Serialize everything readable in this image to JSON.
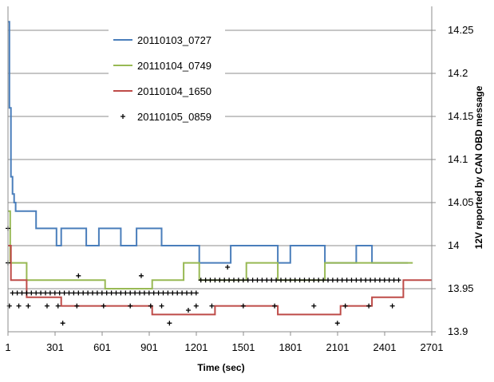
{
  "chart_data": {
    "type": "line",
    "title": "",
    "xlabel": "Time (sec)",
    "ylabel": "12V reported by CAN OBD message",
    "xlim": [
      1,
      2701
    ],
    "ylim": [
      13.9,
      14.27
    ],
    "x_ticks": [
      "1",
      "301",
      "601",
      "901",
      "1201",
      "1501",
      "1801",
      "2101",
      "2401",
      "2701"
    ],
    "y_ticks": [
      "14.25",
      "14.2",
      "14.15",
      "14.1",
      "14.05",
      "14",
      "13.95",
      "13.9"
    ],
    "y_axis_side": "right",
    "grid": "horizontal",
    "legend_position": "top-left inside",
    "series": [
      {
        "name": "20110103_0727",
        "style": "line",
        "color": "#4a7ebb",
        "points": [
          [
            1,
            14.26
          ],
          [
            10,
            14.16
          ],
          [
            20,
            14.08
          ],
          [
            30,
            14.06
          ],
          [
            40,
            14.05
          ],
          [
            50,
            14.04
          ],
          [
            150,
            14.04
          ],
          [
            180,
            14.02
          ],
          [
            300,
            14.02
          ],
          [
            310,
            14.0
          ],
          [
            330,
            14.0
          ],
          [
            340,
            14.02
          ],
          [
            480,
            14.02
          ],
          [
            500,
            14.0
          ],
          [
            560,
            14.0
          ],
          [
            580,
            14.02
          ],
          [
            700,
            14.02
          ],
          [
            720,
            14.0
          ],
          [
            800,
            14.0
          ],
          [
            820,
            14.02
          ],
          [
            960,
            14.02
          ],
          [
            980,
            14.0
          ],
          [
            1200,
            14.0
          ],
          [
            1220,
            13.98
          ],
          [
            1400,
            13.98
          ],
          [
            1420,
            14.0
          ],
          [
            1700,
            14.0
          ],
          [
            1720,
            13.98
          ],
          [
            1780,
            13.98
          ],
          [
            1800,
            14.0
          ],
          [
            2000,
            14.0
          ],
          [
            2020,
            13.98
          ],
          [
            2200,
            13.98
          ],
          [
            2220,
            14.0
          ],
          [
            2300,
            14.0
          ],
          [
            2320,
            13.98
          ],
          [
            2550,
            13.98
          ]
        ]
      },
      {
        "name": "20110104_0749",
        "style": "line",
        "color": "#98b954",
        "points": [
          [
            1,
            14.04
          ],
          [
            15,
            13.98
          ],
          [
            100,
            13.98
          ],
          [
            120,
            13.96
          ],
          [
            600,
            13.96
          ],
          [
            620,
            13.95
          ],
          [
            900,
            13.95
          ],
          [
            920,
            13.96
          ],
          [
            1100,
            13.96
          ],
          [
            1120,
            13.98
          ],
          [
            1200,
            13.98
          ],
          [
            1220,
            13.96
          ],
          [
            1500,
            13.96
          ],
          [
            1520,
            13.98
          ],
          [
            1700,
            13.98
          ],
          [
            1720,
            13.96
          ],
          [
            2000,
            13.96
          ],
          [
            2020,
            13.98
          ],
          [
            2580,
            13.98
          ]
        ]
      },
      {
        "name": "20110104_1650",
        "style": "line",
        "color": "#be4b48",
        "points": [
          [
            1,
            14.0
          ],
          [
            20,
            13.96
          ],
          [
            100,
            13.96
          ],
          [
            120,
            13.94
          ],
          [
            330,
            13.94
          ],
          [
            340,
            13.93
          ],
          [
            900,
            13.93
          ],
          [
            920,
            13.92
          ],
          [
            1300,
            13.92
          ],
          [
            1320,
            13.93
          ],
          [
            1700,
            13.93
          ],
          [
            1720,
            13.92
          ],
          [
            2100,
            13.92
          ],
          [
            2120,
            13.93
          ],
          [
            2300,
            13.93
          ],
          [
            2320,
            13.94
          ],
          [
            2500,
            13.94
          ],
          [
            2520,
            13.96
          ],
          [
            2700,
            13.96
          ]
        ]
      },
      {
        "name": "20110105_0859",
        "style": "markers",
        "marker": "+",
        "color": "#000000",
        "points": [
          [
            1,
            14.02
          ],
          [
            1,
            13.98
          ],
          [
            10,
            13.93
          ],
          [
            30,
            13.945
          ],
          [
            60,
            13.945
          ],
          [
            90,
            13.945
          ],
          [
            120,
            13.945
          ],
          [
            150,
            13.945
          ],
          [
            180,
            13.945
          ],
          [
            210,
            13.945
          ],
          [
            240,
            13.945
          ],
          [
            270,
            13.945
          ],
          [
            300,
            13.945
          ],
          [
            330,
            13.945
          ],
          [
            360,
            13.945
          ],
          [
            390,
            13.945
          ],
          [
            420,
            13.945
          ],
          [
            450,
            13.945
          ],
          [
            480,
            13.945
          ],
          [
            510,
            13.945
          ],
          [
            540,
            13.945
          ],
          [
            570,
            13.945
          ],
          [
            600,
            13.945
          ],
          [
            630,
            13.945
          ],
          [
            660,
            13.945
          ],
          [
            690,
            13.945
          ],
          [
            720,
            13.945
          ],
          [
            750,
            13.945
          ],
          [
            780,
            13.945
          ],
          [
            810,
            13.945
          ],
          [
            840,
            13.945
          ],
          [
            870,
            13.945
          ],
          [
            900,
            13.945
          ],
          [
            930,
            13.945
          ],
          [
            960,
            13.945
          ],
          [
            990,
            13.945
          ],
          [
            1020,
            13.945
          ],
          [
            1050,
            13.945
          ],
          [
            1080,
            13.945
          ],
          [
            1110,
            13.945
          ],
          [
            1140,
            13.945
          ],
          [
            1170,
            13.945
          ],
          [
            1200,
            13.945
          ],
          [
            1230,
            13.96
          ],
          [
            1260,
            13.96
          ],
          [
            1290,
            13.96
          ],
          [
            1320,
            13.96
          ],
          [
            1350,
            13.96
          ],
          [
            1380,
            13.96
          ],
          [
            1410,
            13.96
          ],
          [
            1440,
            13.96
          ],
          [
            1470,
            13.96
          ],
          [
            1500,
            13.96
          ],
          [
            1530,
            13.96
          ],
          [
            1560,
            13.96
          ],
          [
            1590,
            13.96
          ],
          [
            1620,
            13.96
          ],
          [
            1650,
            13.96
          ],
          [
            1680,
            13.96
          ],
          [
            1710,
            13.96
          ],
          [
            1740,
            13.96
          ],
          [
            1770,
            13.96
          ],
          [
            1800,
            13.96
          ],
          [
            1830,
            13.96
          ],
          [
            1860,
            13.96
          ],
          [
            1890,
            13.96
          ],
          [
            1920,
            13.96
          ],
          [
            1950,
            13.96
          ],
          [
            1980,
            13.96
          ],
          [
            2010,
            13.96
          ],
          [
            2040,
            13.96
          ],
          [
            2070,
            13.96
          ],
          [
            2100,
            13.96
          ],
          [
            2130,
            13.96
          ],
          [
            2160,
            13.96
          ],
          [
            2190,
            13.96
          ],
          [
            2220,
            13.96
          ],
          [
            2250,
            13.96
          ],
          [
            2280,
            13.96
          ],
          [
            2310,
            13.96
          ],
          [
            2340,
            13.96
          ],
          [
            2370,
            13.96
          ],
          [
            2400,
            13.96
          ],
          [
            2430,
            13.96
          ],
          [
            2460,
            13.96
          ],
          [
            2490,
            13.96
          ],
          [
            70,
            13.93
          ],
          [
            130,
            13.93
          ],
          [
            250,
            13.93
          ],
          [
            320,
            13.93
          ],
          [
            440,
            13.93
          ],
          [
            610,
            13.93
          ],
          [
            780,
            13.93
          ],
          [
            910,
            13.93
          ],
          [
            980,
            13.93
          ],
          [
            1200,
            13.93
          ],
          [
            1300,
            13.93
          ],
          [
            1500,
            13.93
          ],
          [
            1700,
            13.93
          ],
          [
            1950,
            13.93
          ],
          [
            2150,
            13.93
          ],
          [
            2300,
            13.93
          ],
          [
            2450,
            13.93
          ],
          [
            350,
            13.91
          ],
          [
            1030,
            13.91
          ],
          [
            1150,
            13.925
          ],
          [
            1400,
            13.975
          ],
          [
            2100,
            13.91
          ],
          [
            850,
            13.965
          ],
          [
            450,
            13.965
          ]
        ]
      }
    ]
  }
}
